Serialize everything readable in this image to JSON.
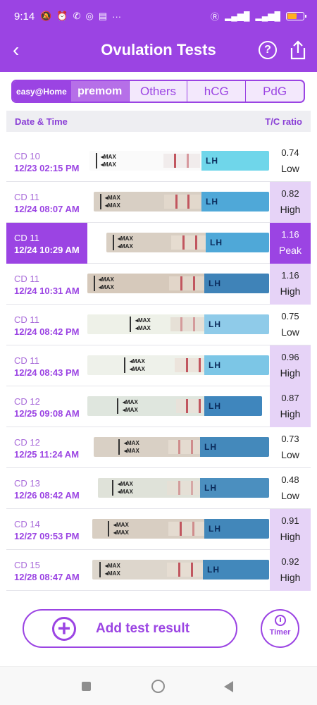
{
  "status": {
    "time": "9:14",
    "icons": [
      "mute-icon",
      "alarm-icon",
      "viber-icon",
      "instagram-icon",
      "card-icon",
      "more-icon"
    ],
    "dots": "···",
    "right_label": "R"
  },
  "header": {
    "title": "Ovulation Tests",
    "back_glyph": "‹",
    "help_glyph": "?"
  },
  "tabs": [
    {
      "label": "easy@Home"
    },
    {
      "label": "premom"
    },
    {
      "label": "Others"
    },
    {
      "label": "hCG"
    },
    {
      "label": "PdG"
    }
  ],
  "table": {
    "col_date": "Date & Time",
    "col_ratio": "T/C ratio"
  },
  "strip_text": {
    "max": "◂MAX",
    "lh": "LH easy@home LH"
  },
  "rows": [
    {
      "cd": "CD 10",
      "datetime": "12/23   02:15 PM",
      "ratio": "0.74",
      "level": "Low"
    },
    {
      "cd": "CD 11",
      "datetime": "12/24   08:07 AM",
      "ratio": "0.82",
      "level": "High"
    },
    {
      "cd": "CD 11",
      "datetime": "12/24   10:29 AM",
      "ratio": "1.16",
      "level": "Peak"
    },
    {
      "cd": "CD 11",
      "datetime": "12/24   10:31 AM",
      "ratio": "1.16",
      "level": "High"
    },
    {
      "cd": "CD 11",
      "datetime": "12/24   08:42 PM",
      "ratio": "0.75",
      "level": "Low"
    },
    {
      "cd": "CD 11",
      "datetime": "12/24   08:43 PM",
      "ratio": "0.96",
      "level": "High"
    },
    {
      "cd": "CD 12",
      "datetime": "12/25   09:08 AM",
      "ratio": "0.87",
      "level": "High"
    },
    {
      "cd": "CD 12",
      "datetime": "12/25   11:24 AM",
      "ratio": "0.73",
      "level": "Low"
    },
    {
      "cd": "CD 13",
      "datetime": "12/26   08:42 AM",
      "ratio": "0.48",
      "level": "Low"
    },
    {
      "cd": "CD 14",
      "datetime": "12/27   09:53 PM",
      "ratio": "0.91",
      "level": "High"
    },
    {
      "cd": "CD 15",
      "datetime": "12/28   08:47 AM",
      "ratio": "0.92",
      "level": "High"
    }
  ],
  "actions": {
    "add_label": "Add test result",
    "timer_label": "Timer"
  },
  "colors": {
    "accent": "#9b44e3",
    "high_bg": "#e6d3f7"
  }
}
